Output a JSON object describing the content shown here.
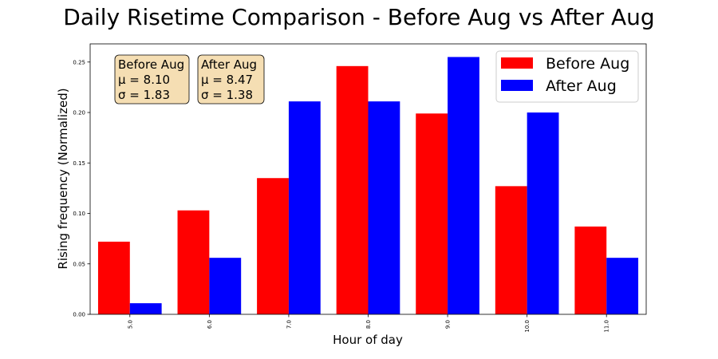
{
  "chart_data": {
    "type": "bar",
    "title": "Daily Risetime Comparison - Before Aug vs After Aug",
    "xlabel": "Hour of day",
    "ylabel": "Rising frequency (Normalized)",
    "categories": [
      "5.0",
      "6.0",
      "7.0",
      "8.0",
      "9.0",
      "10.0",
      "11.0"
    ],
    "series": [
      {
        "name": "Before Aug",
        "color": "#ff0000",
        "values": [
          0.072,
          0.103,
          0.135,
          0.246,
          0.199,
          0.127,
          0.087
        ]
      },
      {
        "name": "After Aug",
        "color": "#0000ff",
        "values": [
          0.011,
          0.056,
          0.211,
          0.211,
          0.255,
          0.2,
          0.056
        ]
      }
    ],
    "ylim": [
      0,
      0.268
    ],
    "yticks": [
      0.0,
      0.05,
      0.1,
      0.15,
      0.2,
      0.25
    ],
    "ytick_labels": [
      "0.00",
      "0.05",
      "0.10",
      "0.15",
      "0.20",
      "0.25"
    ],
    "legend_position": "top-right",
    "grid": false,
    "annotations": [
      {
        "series": "Before Aug",
        "lines": [
          "Before Aug",
          "μ = 8.10",
          "σ = 1.83"
        ]
      },
      {
        "series": "After Aug",
        "lines": [
          "After Aug",
          "μ = 8.47",
          "σ = 1.38"
        ]
      }
    ],
    "annotation_box_color": "#f5deb3"
  }
}
